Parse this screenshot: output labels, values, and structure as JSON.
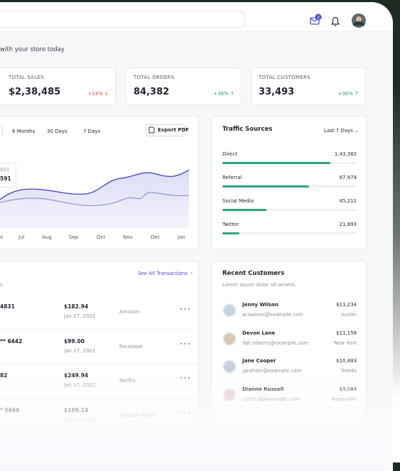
{
  "header": {
    "notification_count": "2",
    "greeting": "with your store today"
  },
  "stats": [
    {
      "label": "TOTAL SALES",
      "value": "$2,38,485",
      "change": "+14% ↓"
    },
    {
      "label": "TOTAL ORDERS",
      "value": "84,382",
      "change": "+36% ↑"
    },
    {
      "label": "TOTAL CUSTOMERS",
      "value": "33,493",
      "change": "+36% ↑"
    }
  ],
  "sales_chart": {
    "tabs": [
      "6 Months",
      "30 Days",
      "7 Days"
    ],
    "export": "Export PDF",
    "tooltip": [
      "021",
      "591"
    ],
    "months": [
      "n",
      "Jul",
      "Aug",
      "Sep",
      "Oct",
      "Nov",
      "Dec",
      "Jan"
    ]
  },
  "traffic": {
    "title": "Traffic Sources",
    "period": "Last 7 Days",
    "rows": [
      {
        "name": "Direct",
        "value": "1,43,382"
      },
      {
        "name": "Referral",
        "value": "87,974"
      },
      {
        "name": "Social Media",
        "value": "45,211"
      },
      {
        "name": "Twitter",
        "value": "21,893"
      }
    ]
  },
  "transactions": {
    "link": "See All Transactions",
    "subtitle": "s.",
    "rows": [
      [
        "4831",
        "$182.94",
        "Jan 17, 2022",
        "Amazon"
      ],
      [
        "** 6442",
        "$99.00",
        "Jan 17, 2022",
        "Facebook"
      ],
      [
        "82",
        "$249.94",
        "Jan 17, 2022",
        "Netflix"
      ],
      [
        "* 5666",
        "$199.24",
        "Jan 17, 2022",
        "Amazon Prime"
      ]
    ]
  },
  "customers": {
    "title": "Recent Customers",
    "subtitle": "Lorem ipsum dolor sit ametis.",
    "rows": [
      {
        "name": "Jenny Wilson",
        "email": "w.lawson@example.com",
        "amount": "$11,234",
        "city": "Austin"
      },
      {
        "name": "Devon Lane",
        "email": "dat.roberts@example.com",
        "amount": "$11,159",
        "city": "New York"
      },
      {
        "name": "Jane Cooper",
        "email": "jgraham@example.com",
        "amount": "$10,483",
        "city": "Toledo"
      },
      {
        "name": "Dianne Russell",
        "email": "curtis.d@example.com",
        "amount": "$9,084",
        "city": "Naperville"
      }
    ]
  }
}
